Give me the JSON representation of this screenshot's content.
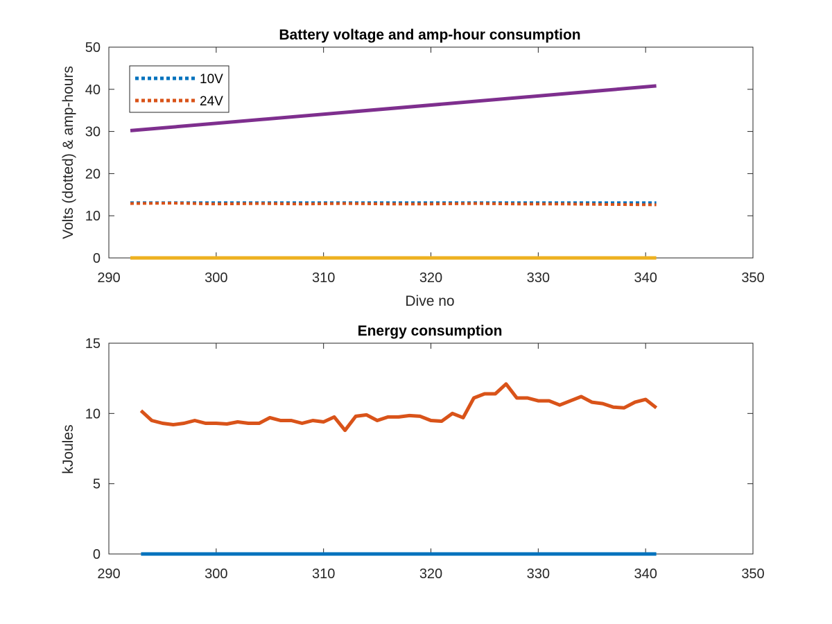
{
  "colors": {
    "blue": "#0072BD",
    "orange": "#D95319",
    "yellow": "#EDB120",
    "purple": "#7E2F8E",
    "axis": "#262626"
  },
  "chart_data": [
    {
      "type": "line",
      "title": "Battery voltage and amp-hour consumption",
      "xlabel": "Dive no",
      "ylabel": "Volts (dotted) & amp-hours",
      "xlim": [
        290,
        350
      ],
      "ylim": [
        0,
        50
      ],
      "xticks": [
        290,
        300,
        310,
        320,
        330,
        340,
        350
      ],
      "yticks": [
        0,
        10,
        20,
        30,
        40,
        50
      ],
      "grid": false,
      "legend": "top-left",
      "series": [
        {
          "name": "10V",
          "style": "dotted",
          "color": "#0072BD",
          "x": [
            292,
            341
          ],
          "y": [
            13.1,
            13.1
          ]
        },
        {
          "name": "24V",
          "style": "dotted",
          "color": "#D95319",
          "x": [
            292,
            296,
            300,
            304,
            308,
            312,
            316,
            320,
            324,
            328,
            332,
            336,
            341
          ],
          "y": [
            12.9,
            13.0,
            12.8,
            12.9,
            12.8,
            12.9,
            12.8,
            12.8,
            12.9,
            12.8,
            12.8,
            12.7,
            12.6
          ]
        },
        {
          "style": "solid",
          "color": "#EDB120",
          "x": [
            292,
            341
          ],
          "y": [
            0,
            0
          ]
        },
        {
          "style": "solid",
          "color": "#7E2F8E",
          "x": [
            292,
            341
          ],
          "y": [
            30.2,
            40.8
          ]
        }
      ]
    },
    {
      "type": "line",
      "title": "Energy consumption",
      "xlabel": "",
      "ylabel": "kJoules",
      "xlim": [
        290,
        350
      ],
      "ylim": [
        0,
        15
      ],
      "xticks": [
        290,
        300,
        310,
        320,
        330,
        340,
        350
      ],
      "yticks": [
        0,
        5,
        10,
        15
      ],
      "grid": false,
      "series": [
        {
          "style": "solid",
          "color": "#0072BD",
          "x": [
            293,
            341
          ],
          "y": [
            0,
            0
          ]
        },
        {
          "style": "solid",
          "color": "#D95319",
          "x": [
            293,
            294,
            295,
            296,
            297,
            298,
            299,
            300,
            301,
            302,
            303,
            304,
            305,
            306,
            307,
            308,
            309,
            310,
            311,
            312,
            313,
            314,
            315,
            316,
            317,
            318,
            319,
            320,
            321,
            322,
            323,
            324,
            325,
            326,
            327,
            328,
            329,
            330,
            331,
            332,
            333,
            334,
            335,
            336,
            337,
            338,
            339,
            340,
            341
          ],
          "y": [
            10.2,
            9.5,
            9.3,
            9.2,
            9.3,
            9.5,
            9.3,
            9.3,
            9.25,
            9.4,
            9.3,
            9.3,
            9.7,
            9.5,
            9.5,
            9.3,
            9.5,
            9.4,
            9.75,
            8.8,
            9.8,
            9.9,
            9.5,
            9.75,
            9.75,
            9.85,
            9.8,
            9.5,
            9.45,
            10.0,
            9.7,
            11.1,
            11.4,
            11.4,
            12.1,
            11.1,
            11.1,
            10.9,
            10.9,
            10.6,
            10.9,
            11.2,
            10.8,
            10.7,
            10.45,
            10.4,
            10.8,
            11.0,
            10.4
          ]
        }
      ]
    }
  ]
}
